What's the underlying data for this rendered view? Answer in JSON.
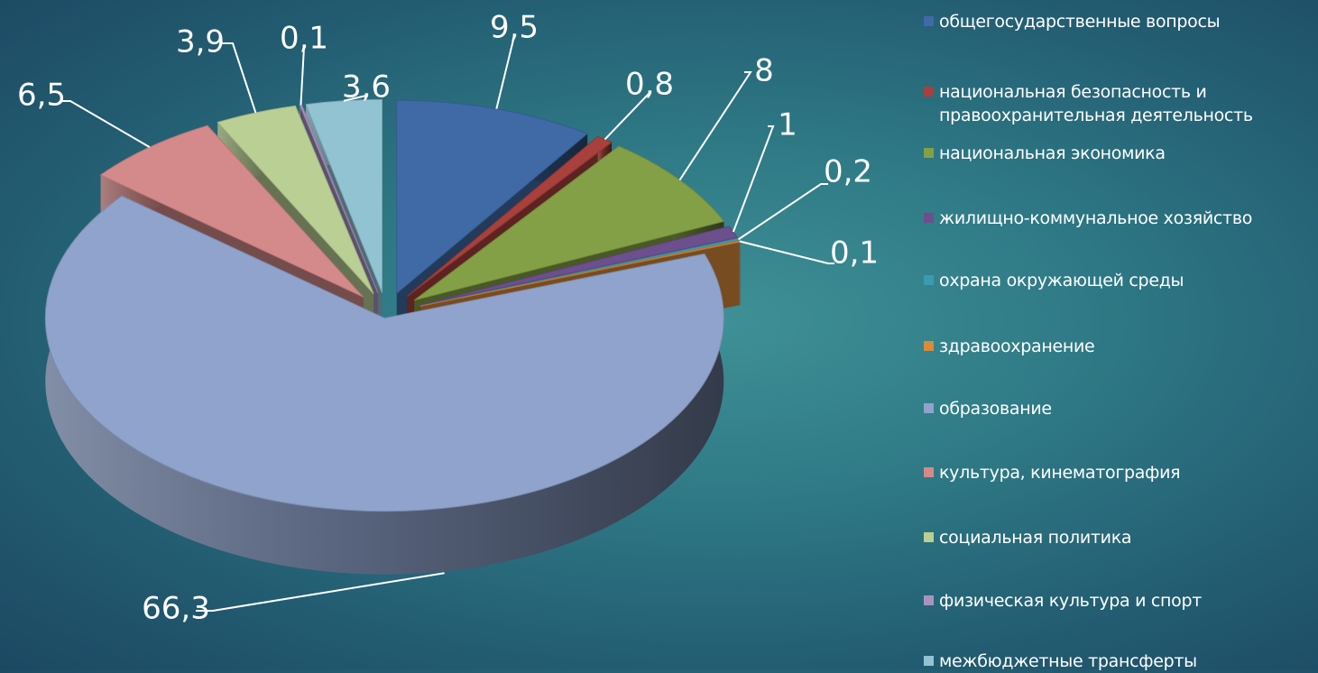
{
  "chart_data": {
    "type": "pie",
    "categories": [
      "общегосударственные вопросы",
      "национальная безопасность и правоохранительная деятельность",
      "национальная экономика",
      "жилищно-коммунальное хозяйство",
      "охрана окружающей среды",
      "здравоохранение",
      "образование",
      "культура, кинематография",
      "социальная политика",
      "физическая культура и спорт",
      "межбюджетные трансферты"
    ],
    "values": [
      9.5,
      0.8,
      8,
      1,
      0.2,
      0.1,
      66.3,
      6.5,
      3.9,
      0.1,
      3.6
    ],
    "data_labels": [
      "9,5",
      "0,8",
      "8",
      "1",
      "0,2",
      "0,1",
      "66,3",
      "6,5",
      "3,9",
      "0,1",
      "3,6"
    ],
    "colors": [
      "#3f6aa6",
      "#a8403c",
      "#84a046",
      "#6d4f8e",
      "#3a9bb0",
      "#d98a3b",
      "#8fa3cc",
      "#d48a8a",
      "#b9cf94",
      "#a693c0",
      "#92c3d3"
    ],
    "legend_position": "right",
    "style": "3d-exploded"
  }
}
